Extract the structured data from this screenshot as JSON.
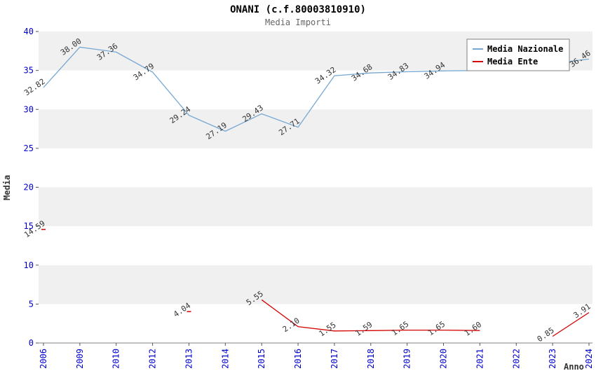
{
  "chart_data": {
    "type": "line",
    "title": "ONANI (c.f.80003810910)",
    "subtitle": "Media Importi",
    "xlabel": "Anno",
    "ylabel": "Media",
    "ylim": [
      0,
      40
    ],
    "ytick_step": 5,
    "ytick_labels": [
      "0",
      "5",
      "10",
      "15",
      "20",
      "25",
      "30",
      "35",
      "40"
    ],
    "categories": [
      "2006",
      "2009",
      "2010",
      "2012",
      "2013",
      "2014",
      "2015",
      "2016",
      "2017",
      "2018",
      "2019",
      "2020",
      "2021",
      "2022",
      "2023",
      "2024"
    ],
    "series": [
      {
        "name": "Media Nazionale",
        "color": "#76A7D3",
        "values": [
          32.82,
          38.0,
          37.36,
          34.79,
          29.24,
          27.19,
          29.43,
          27.71,
          34.32,
          34.68,
          34.83,
          34.94,
          34.99,
          35.06,
          35.9,
          36.46
        ],
        "point_labels": [
          "32.82",
          "38.00",
          "37.36",
          "34.79",
          "29.24",
          "27.19",
          "29.43",
          "27.71",
          "34.32",
          "34.68",
          "34.83",
          "34.94",
          null,
          null,
          null,
          "36.46"
        ]
      },
      {
        "name": "Media Ente",
        "color": "#D40000",
        "values": [
          14.59,
          null,
          null,
          null,
          4.04,
          null,
          5.55,
          2.1,
          1.55,
          1.59,
          1.65,
          1.65,
          1.6,
          null,
          0.85,
          3.91
        ],
        "point_labels": [
          "14.59",
          null,
          null,
          null,
          "4.04",
          null,
          "5.55",
          "2.10",
          "1.55",
          "1.59",
          "1.65",
          "1.65",
          "1.60",
          null,
          "0.85",
          "3.91"
        ]
      }
    ],
    "legend": {
      "position": "top-right"
    },
    "style": {
      "tick_label_color": "#0000CC",
      "band_color": "#F0F0F0",
      "axis_color": "#808080",
      "point_label_color": "#333333"
    }
  }
}
